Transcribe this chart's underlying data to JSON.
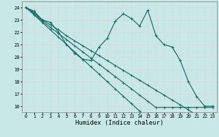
{
  "xlabel": "Humidex (Indice chaleur)",
  "bg_color": "#c8e8e8",
  "grid_color": "#d8d8d8",
  "line_color": "#1a6e6a",
  "x": [
    0,
    1,
    2,
    3,
    4,
    5,
    6,
    7,
    8,
    9,
    10,
    11,
    12,
    13,
    14,
    15,
    16,
    17,
    18,
    19,
    20,
    21,
    22,
    23
  ],
  "series": [
    [
      24,
      23.7,
      23.0,
      22.8,
      22.0,
      21.0,
      20.3,
      19.8,
      19.7,
      20.8,
      21.5,
      22.9,
      23.5,
      23.1,
      22.5,
      23.8,
      21.7,
      21.0,
      20.8,
      19.7,
      18.0,
      16.8,
      16.0,
      16.0
    ],
    [
      24,
      23.6,
      23.0,
      22.6,
      22.2,
      21.7,
      21.3,
      20.9,
      20.5,
      20.1,
      19.7,
      19.3,
      18.9,
      18.5,
      18.1,
      17.7,
      17.3,
      16.9,
      16.5,
      16.1,
      15.7,
      15.3,
      15.3,
      15.3
    ],
    [
      24,
      23.5,
      22.9,
      22.4,
      21.9,
      21.4,
      20.9,
      20.4,
      19.9,
      19.4,
      18.9,
      18.4,
      17.9,
      17.4,
      16.9,
      16.4,
      15.9,
      15.9,
      15.9,
      15.9,
      15.9,
      15.9,
      15.9,
      15.9
    ],
    [
      24,
      23.4,
      22.8,
      22.2,
      21.6,
      21.0,
      20.4,
      19.8,
      19.2,
      18.6,
      18.0,
      17.4,
      16.8,
      16.2,
      15.6,
      15.0,
      15.0,
      15.0,
      15.0,
      15.0,
      15.0,
      15.0,
      15.0,
      15.0
    ]
  ],
  "ylim": [
    15.5,
    24.5
  ],
  "xlim": [
    -0.5,
    23.5
  ],
  "yticks": [
    16,
    17,
    18,
    19,
    20,
    21,
    22,
    23,
    24
  ],
  "xticks": [
    0,
    1,
    2,
    3,
    4,
    5,
    6,
    7,
    8,
    9,
    10,
    11,
    12,
    13,
    14,
    15,
    16,
    17,
    18,
    19,
    20,
    21,
    22,
    23
  ]
}
